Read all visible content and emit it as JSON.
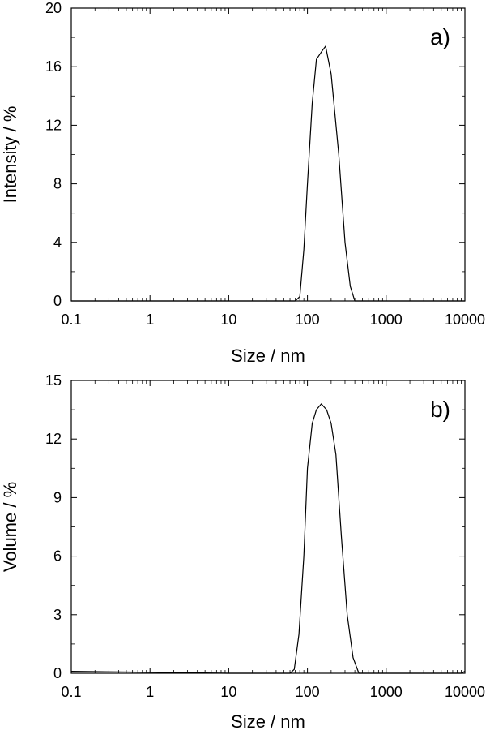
{
  "chart_data": [
    {
      "type": "line",
      "panel_label": "a)",
      "xlabel": "Size / nm",
      "ylabel": "Intensity / %",
      "x_scale": "log",
      "xlim": [
        0.1,
        10000
      ],
      "ylim": [
        0,
        20
      ],
      "x_ticks": [
        0.1,
        1,
        10,
        100,
        1000,
        10000
      ],
      "x_tick_labels": [
        "0.1",
        "1",
        "10",
        "100",
        "1000",
        "10000"
      ],
      "y_ticks": [
        0,
        4,
        8,
        12,
        16,
        20
      ],
      "y_tick_labels": [
        "0",
        "4",
        "8",
        "12",
        "16",
        "20"
      ],
      "grid": false,
      "legend": "none",
      "series": [
        {
          "x": [
            0.1,
            70,
            80,
            90,
            100,
            115,
            130,
            150,
            170,
            200,
            250,
            300,
            350,
            400,
            10000
          ],
          "y": [
            0,
            0,
            0.3,
            3.5,
            8.0,
            13.5,
            16.5,
            17.0,
            17.4,
            15.5,
            10.0,
            4.0,
            1.0,
            0,
            0
          ]
        }
      ]
    },
    {
      "type": "line",
      "panel_label": "b)",
      "xlabel": "Size / nm",
      "ylabel": "Volume / %",
      "x_scale": "log",
      "xlim": [
        0.1,
        10000
      ],
      "ylim": [
        0,
        15
      ],
      "x_ticks": [
        0.1,
        1,
        10,
        100,
        1000,
        10000
      ],
      "x_tick_labels": [
        "0.1",
        "1",
        "10",
        "100",
        "1000",
        "10000"
      ],
      "y_ticks": [
        0,
        3,
        6,
        9,
        12,
        15
      ],
      "y_tick_labels": [
        "0",
        "3",
        "6",
        "9",
        "12",
        "15"
      ],
      "grid": false,
      "legend": "none",
      "series": [
        {
          "x": [
            0.1,
            10,
            60,
            68,
            78,
            90,
            100,
            115,
            130,
            150,
            175,
            200,
            230,
            270,
            320,
            380,
            450,
            5000,
            9000,
            10000
          ],
          "y": [
            0.1,
            0,
            0,
            0.2,
            2.0,
            6.0,
            10.5,
            12.8,
            13.5,
            13.8,
            13.5,
            12.8,
            11.2,
            7.0,
            3.0,
            0.8,
            0,
            0,
            0,
            0.1
          ]
        }
      ]
    }
  ]
}
